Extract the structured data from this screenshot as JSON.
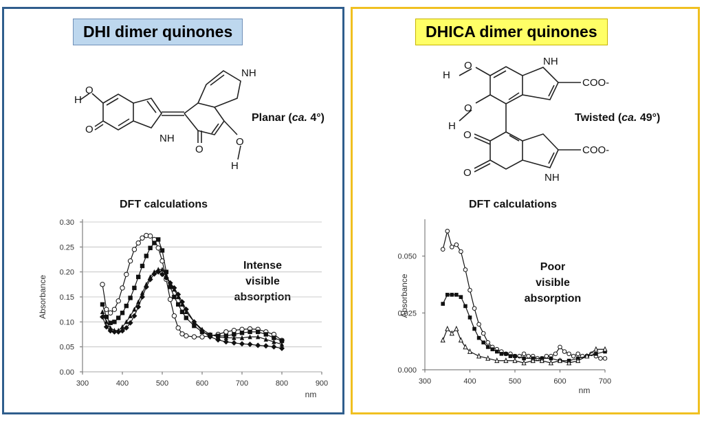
{
  "left": {
    "title": "DHI dimer quinones",
    "geometry_label": "Planar (",
    "geometry_ca": "ca.",
    "geometry_value": " 4°)",
    "calc_label": "DFT calculations",
    "annotation_lines": [
      "Intense",
      "visible",
      "absorption"
    ]
  },
  "right": {
    "title": "DHICA dimer quinones",
    "geometry_label": "Twisted (",
    "geometry_ca": "ca.",
    "geometry_value": " 49°)",
    "calc_label": "DFT calculations",
    "annotation_lines": [
      "Poor",
      "visible",
      "absorption"
    ]
  },
  "structures": {
    "dhi_atoms": [
      "H",
      "O",
      "O",
      "NH",
      "NH",
      "O",
      "O",
      "H"
    ],
    "dhica_atoms": [
      "H",
      "O",
      "O",
      "H",
      "NH",
      "COO-",
      "O",
      "O",
      "NH",
      "COO-"
    ]
  },
  "chart_data": [
    {
      "type": "line",
      "ylabel": "Absorbance",
      "xlabel": "nm",
      "xlim": [
        300,
        900
      ],
      "ylim": [
        0.0,
        0.3
      ],
      "xticks": [
        "300",
        "400",
        "500",
        "600",
        "700",
        "800",
        "900"
      ],
      "yticks": [
        "0.00",
        "0.05",
        "0.10",
        "0.15",
        "0.20",
        "0.25",
        "0.30"
      ],
      "grid": "horizontal",
      "series": [
        {
          "marker": "open-circle",
          "points": [
            [
              350,
              0.175
            ],
            [
              360,
              0.125
            ],
            [
              370,
              0.118
            ],
            [
              380,
              0.125
            ],
            [
              390,
              0.142
            ],
            [
              400,
              0.168
            ],
            [
              410,
              0.195
            ],
            [
              420,
              0.222
            ],
            [
              430,
              0.245
            ],
            [
              440,
              0.258
            ],
            [
              450,
              0.268
            ],
            [
              460,
              0.273
            ],
            [
              470,
              0.272
            ],
            [
              480,
              0.265
            ],
            [
              490,
              0.248
            ],
            [
              500,
              0.222
            ],
            [
              510,
              0.185
            ],
            [
              520,
              0.145
            ],
            [
              530,
              0.112
            ],
            [
              540,
              0.088
            ],
            [
              550,
              0.076
            ],
            [
              560,
              0.072
            ],
            [
              580,
              0.07
            ],
            [
              600,
              0.07
            ],
            [
              620,
              0.072
            ],
            [
              640,
              0.075
            ],
            [
              660,
              0.08
            ],
            [
              680,
              0.083
            ],
            [
              700,
              0.085
            ],
            [
              720,
              0.086
            ],
            [
              740,
              0.085
            ],
            [
              760,
              0.08
            ],
            [
              780,
              0.075
            ],
            [
              800,
              0.063
            ]
          ]
        },
        {
          "marker": "filled-square",
          "points": [
            [
              350,
              0.135
            ],
            [
              360,
              0.11
            ],
            [
              370,
              0.098
            ],
            [
              380,
              0.1
            ],
            [
              390,
              0.108
            ],
            [
              400,
              0.118
            ],
            [
              410,
              0.132
            ],
            [
              420,
              0.148
            ],
            [
              430,
              0.168
            ],
            [
              440,
              0.19
            ],
            [
              450,
              0.212
            ],
            [
              460,
              0.232
            ],
            [
              470,
              0.248
            ],
            [
              480,
              0.258
            ],
            [
              490,
              0.265
            ],
            [
              500,
              0.243
            ],
            [
              510,
              0.2
            ],
            [
              520,
              0.17
            ],
            [
              530,
              0.15
            ],
            [
              540,
              0.135
            ],
            [
              550,
              0.12
            ],
            [
              560,
              0.108
            ],
            [
              580,
              0.092
            ],
            [
              600,
              0.08
            ],
            [
              620,
              0.074
            ],
            [
              640,
              0.072
            ],
            [
              660,
              0.072
            ],
            [
              680,
              0.075
            ],
            [
              700,
              0.078
            ],
            [
              720,
              0.08
            ],
            [
              740,
              0.08
            ],
            [
              760,
              0.075
            ],
            [
              780,
              0.068
            ],
            [
              800,
              0.062
            ]
          ]
        },
        {
          "marker": "filled-triangle",
          "points": [
            [
              350,
              0.12
            ],
            [
              360,
              0.1
            ],
            [
              370,
              0.088
            ],
            [
              380,
              0.083
            ],
            [
              390,
              0.083
            ],
            [
              400,
              0.09
            ],
            [
              410,
              0.1
            ],
            [
              420,
              0.112
            ],
            [
              430,
              0.125
            ],
            [
              440,
              0.14
            ],
            [
              450,
              0.158
            ],
            [
              460,
              0.175
            ],
            [
              470,
              0.19
            ],
            [
              480,
              0.2
            ],
            [
              490,
              0.205
            ],
            [
              500,
              0.205
            ],
            [
              510,
              0.192
            ],
            [
              520,
              0.178
            ],
            [
              530,
              0.165
            ],
            [
              540,
              0.15
            ],
            [
              550,
              0.135
            ],
            [
              560,
              0.12
            ],
            [
              580,
              0.1
            ],
            [
              600,
              0.085
            ],
            [
              620,
              0.075
            ],
            [
              640,
              0.07
            ],
            [
              660,
              0.068
            ],
            [
              680,
              0.068
            ],
            [
              700,
              0.068
            ],
            [
              720,
              0.07
            ],
            [
              740,
              0.07
            ],
            [
              760,
              0.065
            ],
            [
              780,
              0.06
            ],
            [
              800,
              0.055
            ]
          ]
        },
        {
          "marker": "filled-diamond",
          "points": [
            [
              350,
              0.11
            ],
            [
              360,
              0.09
            ],
            [
              370,
              0.082
            ],
            [
              380,
              0.08
            ],
            [
              390,
              0.08
            ],
            [
              400,
              0.082
            ],
            [
              410,
              0.088
            ],
            [
              420,
              0.098
            ],
            [
              430,
              0.112
            ],
            [
              440,
              0.13
            ],
            [
              450,
              0.15
            ],
            [
              460,
              0.17
            ],
            [
              470,
              0.185
            ],
            [
              480,
              0.196
            ],
            [
              490,
              0.2
            ],
            [
              500,
              0.195
            ],
            [
              510,
              0.188
            ],
            [
              520,
              0.178
            ],
            [
              530,
              0.168
            ],
            [
              540,
              0.155
            ],
            [
              550,
              0.14
            ],
            [
              560,
              0.125
            ],
            [
              580,
              0.1
            ],
            [
              600,
              0.082
            ],
            [
              620,
              0.07
            ],
            [
              640,
              0.064
            ],
            [
              660,
              0.06
            ],
            [
              680,
              0.058
            ],
            [
              700,
              0.056
            ],
            [
              720,
              0.055
            ],
            [
              740,
              0.053
            ],
            [
              760,
              0.052
            ],
            [
              780,
              0.05
            ],
            [
              800,
              0.047
            ]
          ]
        }
      ]
    },
    {
      "type": "line",
      "ylabel": "Absorbance",
      "xlabel": "nm",
      "xlim": [
        300,
        700
      ],
      "ylim": [
        0.0,
        0.065
      ],
      "xticks": [
        "300",
        "400",
        "500",
        "600",
        "700"
      ],
      "yticks": [
        "0.000",
        "0.025",
        "0.050"
      ],
      "grid": "none",
      "series": [
        {
          "marker": "open-circle",
          "points": [
            [
              340,
              0.053
            ],
            [
              350,
              0.061
            ],
            [
              360,
              0.054
            ],
            [
              370,
              0.055
            ],
            [
              380,
              0.052
            ],
            [
              390,
              0.044
            ],
            [
              400,
              0.035
            ],
            [
              410,
              0.027
            ],
            [
              420,
              0.02
            ],
            [
              430,
              0.016
            ],
            [
              440,
              0.012
            ],
            [
              450,
              0.01
            ],
            [
              460,
              0.009
            ],
            [
              470,
              0.008
            ],
            [
              480,
              0.007
            ],
            [
              490,
              0.007
            ],
            [
              500,
              0.006
            ],
            [
              510,
              0.006
            ],
            [
              520,
              0.007
            ],
            [
              530,
              0.006
            ],
            [
              540,
              0.006
            ],
            [
              550,
              0.005
            ],
            [
              560,
              0.005
            ],
            [
              570,
              0.006
            ],
            [
              580,
              0.006
            ],
            [
              590,
              0.007
            ],
            [
              600,
              0.01
            ],
            [
              610,
              0.008
            ],
            [
              620,
              0.007
            ],
            [
              630,
              0.006
            ],
            [
              640,
              0.007
            ],
            [
              650,
              0.006
            ],
            [
              660,
              0.006
            ],
            [
              670,
              0.007
            ],
            [
              680,
              0.006
            ],
            [
              690,
              0.005
            ],
            [
              700,
              0.005
            ]
          ]
        },
        {
          "marker": "filled-square",
          "points": [
            [
              340,
              0.029
            ],
            [
              350,
              0.033
            ],
            [
              360,
              0.033
            ],
            [
              370,
              0.033
            ],
            [
              380,
              0.032
            ],
            [
              390,
              0.028
            ],
            [
              400,
              0.023
            ],
            [
              410,
              0.018
            ],
            [
              420,
              0.014
            ],
            [
              430,
              0.012
            ],
            [
              440,
              0.01
            ],
            [
              450,
              0.009
            ],
            [
              460,
              0.008
            ],
            [
              470,
              0.007
            ],
            [
              480,
              0.007
            ],
            [
              490,
              0.006
            ],
            [
              500,
              0.006
            ],
            [
              520,
              0.005
            ],
            [
              540,
              0.005
            ],
            [
              560,
              0.005
            ],
            [
              580,
              0.005
            ],
            [
              600,
              0.004
            ],
            [
              620,
              0.004
            ],
            [
              640,
              0.005
            ],
            [
              660,
              0.006
            ],
            [
              680,
              0.007
            ],
            [
              700,
              0.008
            ]
          ]
        },
        {
          "marker": "open-triangle",
          "points": [
            [
              340,
              0.013
            ],
            [
              350,
              0.018
            ],
            [
              360,
              0.016
            ],
            [
              370,
              0.018
            ],
            [
              380,
              0.013
            ],
            [
              390,
              0.01
            ],
            [
              400,
              0.008
            ],
            [
              420,
              0.006
            ],
            [
              440,
              0.005
            ],
            [
              460,
              0.004
            ],
            [
              480,
              0.004
            ],
            [
              500,
              0.004
            ],
            [
              520,
              0.003
            ],
            [
              540,
              0.004
            ],
            [
              560,
              0.004
            ],
            [
              580,
              0.003
            ],
            [
              600,
              0.004
            ],
            [
              620,
              0.003
            ],
            [
              640,
              0.004
            ],
            [
              660,
              0.006
            ],
            [
              680,
              0.009
            ],
            [
              700,
              0.009
            ]
          ]
        }
      ]
    }
  ]
}
